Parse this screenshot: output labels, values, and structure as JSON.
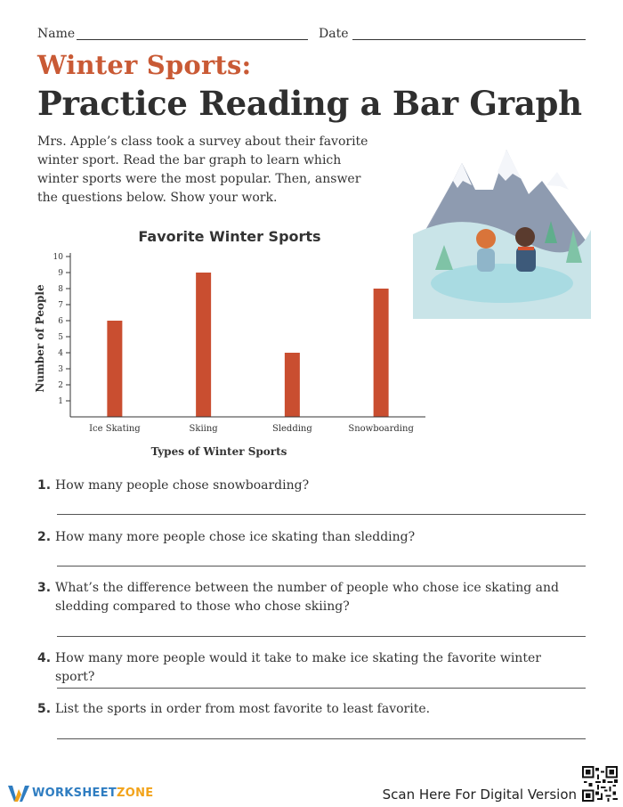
{
  "header": {
    "name_label": "Name",
    "date_label": "Date",
    "subtitle": "Winter Sports:",
    "title": "Practice Reading a Bar Graph",
    "intro": "Mrs. Apple’s class took a survey about their favorite winter sport. Read the bar graph to learn which winter sports were the most popular. Then, answer the questions below. Show your work."
  },
  "chart_data": {
    "type": "bar",
    "title": "Favorite Winter Sports",
    "xlabel": "Types of Winter Sports",
    "ylabel": "Number of People",
    "categories": [
      "Ice Skating",
      "Skiing",
      "Sledding",
      "Snowboarding"
    ],
    "values": [
      6,
      9,
      4,
      8
    ],
    "ylim": [
      0,
      10
    ],
    "yticks": [
      1,
      2,
      3,
      4,
      5,
      6,
      7,
      8,
      9,
      10
    ],
    "bar_color": "#c94e30",
    "grid": false
  },
  "questions": [
    {
      "number": "1.",
      "text": "How many people chose snowboarding?"
    },
    {
      "number": "2.",
      "text": "How many more people chose ice skating than sledding?"
    },
    {
      "number": "3.",
      "text": "What’s the difference between the number of people who chose ice skating and sledding compared to those who chose skiing?"
    },
    {
      "number": "4.",
      "text": "How many more people would it take to make ice skating the favorite winter sport?"
    },
    {
      "number": "5.",
      "text": "List the sports in order from most favorite to least favorite."
    }
  ],
  "footer": {
    "logo_word1": "WORKSHEET",
    "logo_word2": "ZONE",
    "scan_text": "Scan Here For Digital Version"
  },
  "colors": {
    "accent": "#c95a35",
    "logo_blue": "#2f7dc1",
    "logo_orange": "#f2a31b"
  }
}
